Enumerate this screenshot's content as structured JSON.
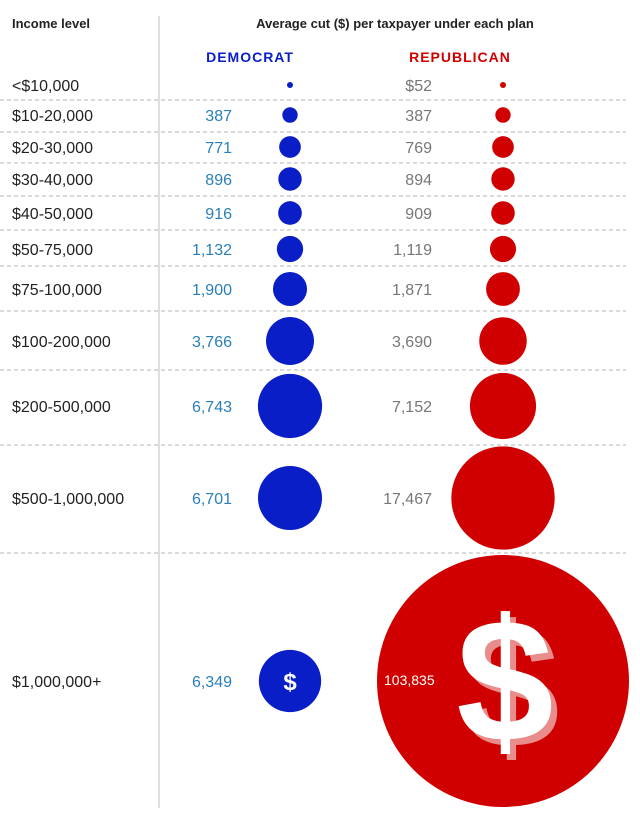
{
  "chart_data": {
    "type": "table",
    "column_header": "Income level",
    "title": "Average cut ($) per taxpayer under each plan",
    "series": [
      {
        "name": "DEMOCRAT",
        "color": "#0a1ec8",
        "values": [
          null,
          387,
          771,
          896,
          916,
          1132,
          1900,
          3766,
          6743,
          6701,
          6349
        ],
        "labels": [
          "",
          "387",
          "771",
          "896",
          "916",
          "1,132",
          "1,900",
          "3,766",
          "6,743",
          "6,701",
          "6,349"
        ]
      },
      {
        "name": "REPUBLICAN",
        "color": "#d00000",
        "values": [
          52,
          387,
          769,
          894,
          909,
          1119,
          1871,
          3690,
          7152,
          17467,
          103835
        ],
        "labels": [
          "$52",
          "387",
          "769",
          "894",
          "909",
          "1,119",
          "1,871",
          "3,690",
          "7,152",
          "17,467",
          "103,835"
        ]
      }
    ],
    "categories": [
      "<$10,000",
      "$10-20,000",
      "$20-30,000",
      "$30-40,000",
      "$40-50,000",
      "$50-75,000",
      "$75-100,000",
      "$100-200,000",
      "$200-500,000",
      "$500-1,000,000",
      "$1,000,000+"
    ],
    "dollar_symbol": "$"
  }
}
